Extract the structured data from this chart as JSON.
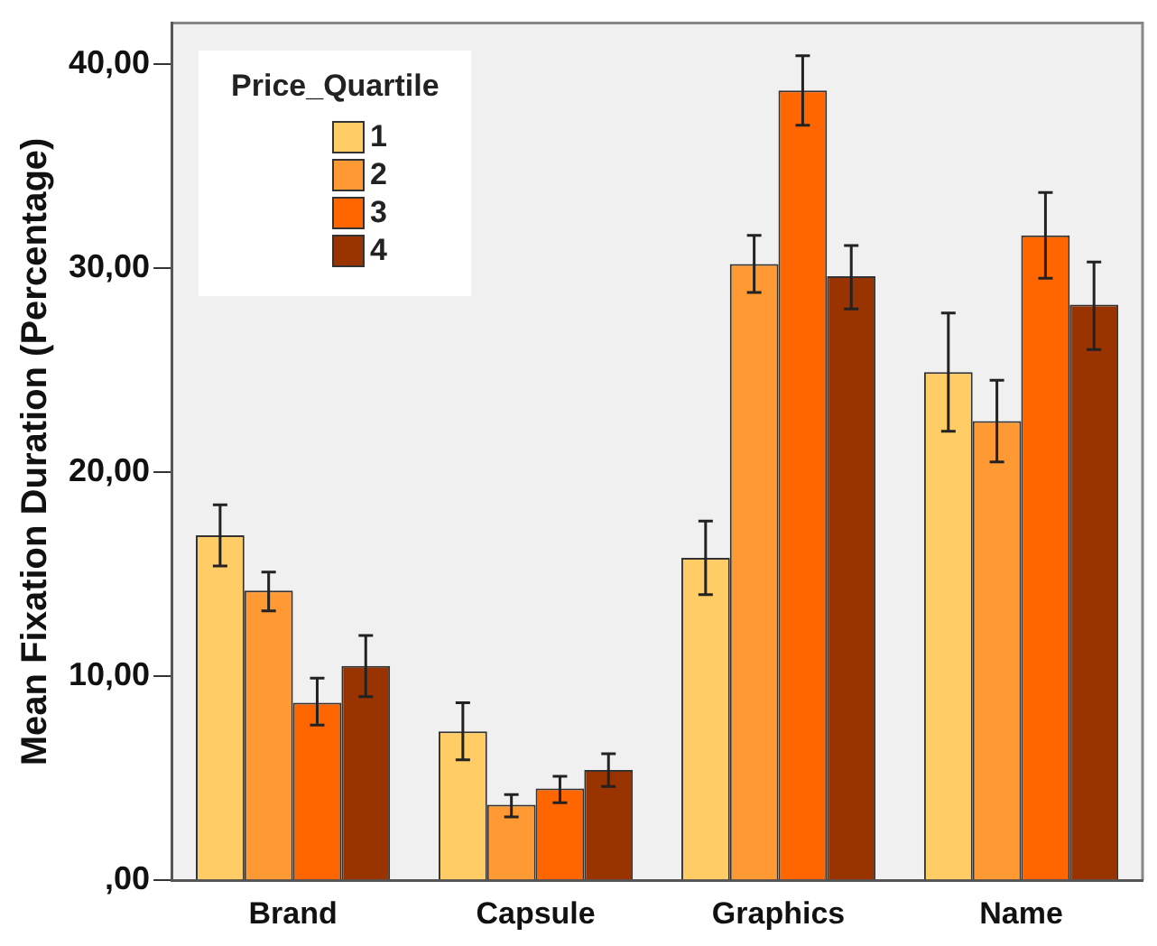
{
  "chart_data": {
    "type": "bar",
    "ylabel": "Mean Fixation Duration (Percentage)",
    "legend_title": "Price_Quartile",
    "legend": "top left",
    "grid": false,
    "categories": [
      "Brand",
      "Capsule",
      "Graphics",
      "Name"
    ],
    "ylim": [
      0,
      42
    ],
    "yticks": [
      {
        "value": 0,
        "label": ",00"
      },
      {
        "value": 10,
        "label": "10,00"
      },
      {
        "value": 20,
        "label": "20,00"
      },
      {
        "value": 30,
        "label": "30,00"
      },
      {
        "value": 40,
        "label": "40,00"
      }
    ],
    "series": [
      {
        "name": "1",
        "color": "#ffcc66",
        "values": [
          16.9,
          7.3,
          15.8,
          24.9
        ],
        "errors": [
          [
            15.4,
            18.4
          ],
          [
            5.9,
            8.7
          ],
          [
            14.0,
            17.6
          ],
          [
            22.0,
            27.8
          ]
        ]
      },
      {
        "name": "2",
        "color": "#ff9933",
        "values": [
          14.2,
          3.7,
          30.2,
          22.5
        ],
        "errors": [
          [
            13.2,
            15.1
          ],
          [
            3.1,
            4.2
          ],
          [
            28.8,
            31.6
          ],
          [
            20.5,
            24.5
          ]
        ]
      },
      {
        "name": "3",
        "color": "#ff6600",
        "values": [
          8.7,
          4.5,
          38.7,
          31.6
        ],
        "errors": [
          [
            7.6,
            9.9
          ],
          [
            3.8,
            5.1
          ],
          [
            37.0,
            40.4
          ],
          [
            29.5,
            33.7
          ]
        ]
      },
      {
        "name": "4",
        "color": "#993300",
        "values": [
          10.5,
          5.4,
          29.6,
          28.2
        ],
        "errors": [
          [
            9.0,
            12.0
          ],
          [
            4.6,
            6.2
          ],
          [
            28.0,
            31.1
          ],
          [
            26.0,
            30.3
          ]
        ]
      }
    ]
  }
}
